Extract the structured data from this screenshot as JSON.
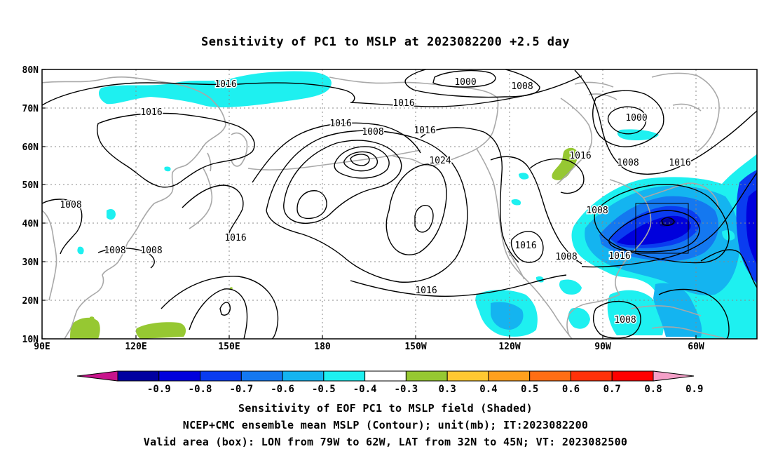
{
  "title": "Sensitivity of PC1 to MSLP at 2023082200 +2.5 day",
  "map": {
    "lat_labels": [
      "80N",
      "70N",
      "60N",
      "50N",
      "40N",
      "30N",
      "20N",
      "10N"
    ],
    "lon_labels": [
      "90E",
      "120E",
      "150E",
      "180",
      "150W",
      "120W",
      "90W",
      "60W"
    ],
    "contour_labels": [
      "1016",
      "1016",
      "1000",
      "1008",
      "1016",
      "1016",
      "1008",
      "1016",
      "1000",
      "1016",
      "1008",
      "1016",
      "1024",
      "1008",
      "1016",
      "1008",
      "1008",
      "1016",
      "1008",
      "1016",
      "1016",
      "1008",
      "1008",
      "1016",
      "1008"
    ],
    "valid_box": {
      "lon_from": "79W",
      "lon_to": "62W",
      "lat_from": "32N",
      "lat_to": "45N"
    }
  },
  "colorbar": {
    "labels": [
      "-0.9",
      "-0.8",
      "-0.7",
      "-0.6",
      "-0.5",
      "-0.4",
      "-0.3",
      "0.3",
      "0.4",
      "0.5",
      "0.6",
      "0.7",
      "0.8",
      "0.9"
    ],
    "colors": {
      "low_tip": "#c8148c",
      "bins": [
        "#0000a0",
        "#0000dc",
        "#0a3cf0",
        "#1478f0",
        "#14b4f0",
        "#1ef0f0",
        "#ffffff",
        "#96c832",
        "#ffc832",
        "#ffa01e",
        "#ff6e14",
        "#ff320a",
        "#ff0000"
      ],
      "high_tip": "#f4a0c8"
    }
  },
  "caption": {
    "line1": "Sensitivity of EOF PC1 to MSLP field (Shaded)",
    "line2": "NCEP+CMC ensemble mean MSLP (Contour); unit(mb); IT:2023082200",
    "line3": "Valid area (box): LON from 79W to 62W, LAT from 32N to 45N; VT: 2023082500"
  },
  "colors": {
    "coast": "#a8a8a8",
    "contour": "#000000",
    "grid": "#888888",
    "cyan": "#1ef0f0",
    "light_blue": "#14b4f0",
    "mid_blue": "#1478f0",
    "blue": "#0a3cf0",
    "dark_blue": "#0000dc",
    "navy": "#0000a0",
    "green": "#96c832"
  }
}
